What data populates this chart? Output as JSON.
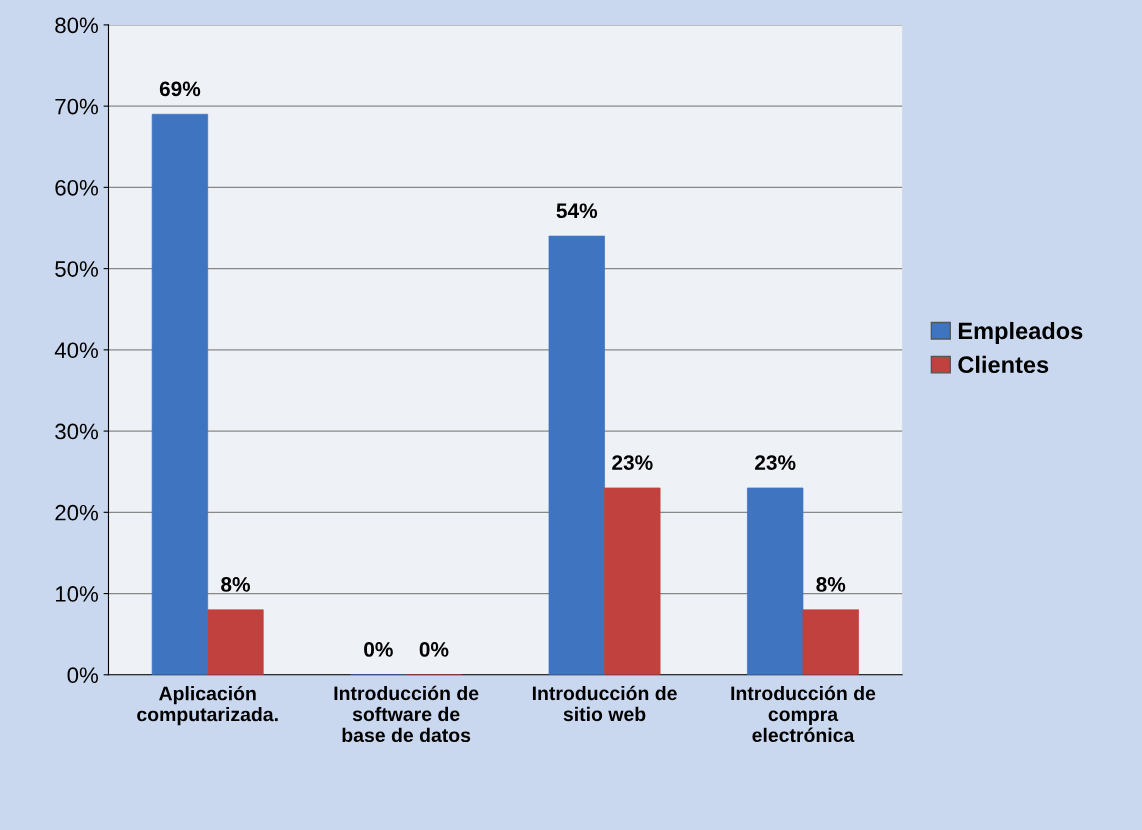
{
  "chart_data": {
    "type": "bar",
    "categories": [
      "Aplicación\ncomputarizada.",
      "Introducción de\nsoftware de\nbase de datos",
      "Introducción de\nsitio web",
      "Introducción de\ncompra\nelectrónica"
    ],
    "series": [
      {
        "name": "Empleados",
        "color": "#3f74c0",
        "values": [
          69,
          0,
          54,
          23
        ],
        "value_labels": [
          "69%",
          "0%",
          "54%",
          "23%"
        ]
      },
      {
        "name": "Clientes",
        "color": "#c0413e",
        "values": [
          8,
          0,
          23,
          8
        ],
        "value_labels": [
          "8%",
          "0%",
          "23%",
          "8%"
        ]
      }
    ],
    "ylim": [
      0,
      80
    ],
    "yticks": [
      {
        "value": 0,
        "label": "0%"
      },
      {
        "value": 10,
        "label": "10%"
      },
      {
        "value": 20,
        "label": "20%"
      },
      {
        "value": 30,
        "label": "30%"
      },
      {
        "value": 40,
        "label": "40%"
      },
      {
        "value": 50,
        "label": "50%"
      },
      {
        "value": 60,
        "label": "60%"
      },
      {
        "value": 70,
        "label": "70%"
      },
      {
        "value": 80,
        "label": "80%"
      }
    ],
    "grid": "y",
    "legend": "right"
  }
}
